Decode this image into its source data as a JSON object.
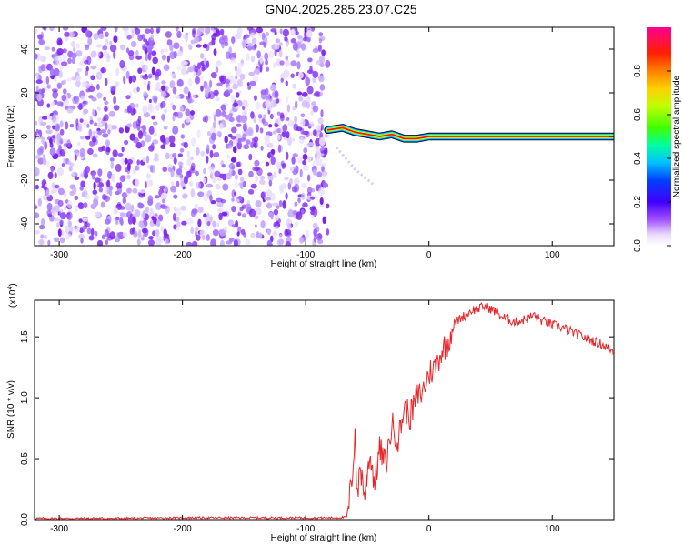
{
  "title": "GN04.2025.285.23.07.C25",
  "colorbar": {
    "label": "Normalized spectral amplitude",
    "ticks": [
      "0.0",
      "0.2",
      "0.4",
      "0.6",
      "0.8"
    ],
    "tick_values": [
      0.0,
      0.2,
      0.4,
      0.6,
      0.8
    ],
    "range": [
      0,
      1
    ],
    "colors": [
      "#ffffff",
      "#e8dcff",
      "#8000ff",
      "#0000ff",
      "#00ffff",
      "#00ff00",
      "#ffff00",
      "#ff8000",
      "#ff0000",
      "#ff0080"
    ]
  },
  "chart_data": [
    {
      "type": "heatmap",
      "xlabel": "Height of straight line (km)",
      "ylabel": "Frequency (Hz)",
      "xlim": [
        -320,
        150
      ],
      "ylim": [
        -50,
        50
      ],
      "xticks": [
        -300,
        -200,
        -100,
        0,
        100
      ],
      "xtick_labels": [
        "-300",
        "-200",
        "-100",
        "0",
        "100"
      ],
      "yticks": [
        -40,
        -20,
        0,
        20,
        40
      ],
      "ytick_labels": [
        "-40",
        "-20",
        "0",
        "20",
        "40"
      ],
      "noise_region_x": [
        -320,
        -82
      ],
      "signal_band": {
        "x": [
          -82,
          150
        ],
        "ridge_freq": [
          3,
          4,
          2,
          1,
          0,
          1,
          -1,
          -1,
          0,
          0,
          0
        ],
        "ridge_x": [
          -82,
          -70,
          -60,
          -50,
          -40,
          -30,
          -20,
          -10,
          0,
          50,
          150
        ],
        "tail": {
          "x": [
            -75,
            -60,
            -45
          ],
          "y": [
            -5,
            -15,
            -22
          ]
        }
      },
      "noise_colors": [
        "#e8dcff",
        "#cbb3ff",
        "#a070ff",
        "#8a3cff",
        "#7a1fe8"
      ]
    },
    {
      "type": "line",
      "xlabel": "Height of straight line (km)",
      "ylabel": "SNR (10 * v/v)",
      "multiplier_label": "(x10",
      "multiplier_exp": "4",
      "multiplier_close": ")",
      "xlim": [
        -320,
        150
      ],
      "ylim": [
        0,
        1.8
      ],
      "xticks": [
        -300,
        -200,
        -100,
        0,
        100
      ],
      "xtick_labels": [
        "-300",
        "-200",
        "-100",
        "0",
        "100"
      ],
      "yticks": [
        0.0,
        0.5,
        1.0,
        1.5
      ],
      "ytick_labels": [
        "0.0",
        "0.5",
        "1.0",
        "1.5"
      ],
      "series": [
        {
          "color": "#e8262a",
          "x": [
            -320,
            -250,
            -200,
            -150,
            -100,
            -75,
            -66,
            -62,
            -60,
            -58,
            -56,
            -52,
            -48,
            -44,
            -40,
            -35,
            -30,
            -25,
            -20,
            -15,
            -10,
            -5,
            0,
            5,
            10,
            15,
            20,
            25,
            30,
            35,
            40,
            45,
            50,
            55,
            60,
            70,
            80,
            85,
            90,
            100,
            110,
            120,
            130,
            140,
            150
          ],
          "y": [
            0.01,
            0.01,
            0.015,
            0.015,
            0.015,
            0.015,
            0.02,
            0.4,
            0.72,
            0.15,
            0.45,
            0.2,
            0.55,
            0.3,
            0.58,
            0.45,
            0.78,
            0.65,
            0.92,
            0.85,
            1.0,
            1.05,
            1.2,
            1.25,
            1.38,
            1.45,
            1.6,
            1.65,
            1.68,
            1.72,
            1.73,
            1.75,
            1.73,
            1.7,
            1.66,
            1.62,
            1.65,
            1.68,
            1.64,
            1.6,
            1.57,
            1.52,
            1.48,
            1.44,
            1.38
          ]
        }
      ]
    }
  ]
}
